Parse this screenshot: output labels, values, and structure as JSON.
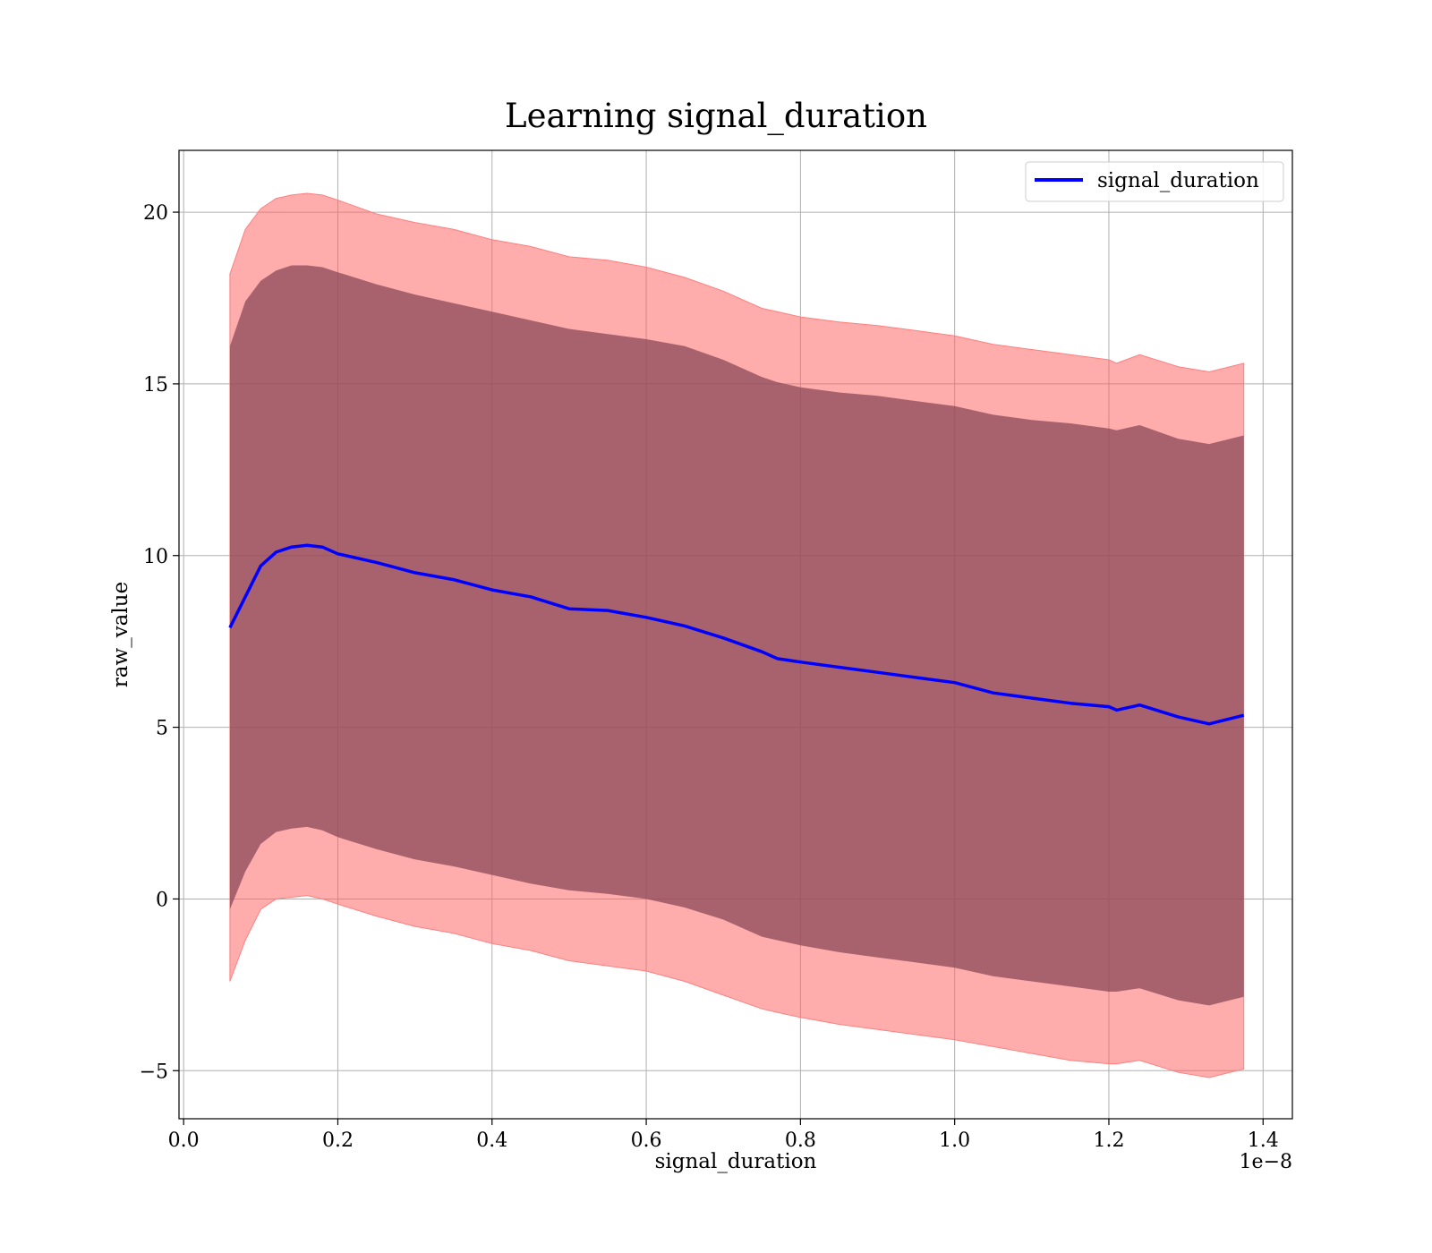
{
  "chart_data": {
    "type": "line",
    "title": "Learning signal_duration",
    "xlabel": "signal_duration",
    "ylabel": "raw_value",
    "x_offset_label": "1e−8",
    "xlim": [
      -0.006,
      1.438
    ],
    "ylim": [
      -6.4,
      21.8
    ],
    "x_ticks": [
      0.0,
      0.2,
      0.4,
      0.6,
      0.8,
      1.0,
      1.2,
      1.4
    ],
    "x_tick_labels": [
      "0.0",
      "0.2",
      "0.4",
      "0.6",
      "0.8",
      "1.0",
      "1.2",
      "1.4"
    ],
    "y_ticks": [
      -5,
      0,
      5,
      10,
      15,
      20
    ],
    "y_tick_labels": [
      "−5",
      "0",
      "5",
      "10",
      "15",
      "20"
    ],
    "grid": true,
    "legend": {
      "position": "top-right",
      "entries": [
        "signal_duration"
      ]
    },
    "colors": {
      "line": "#0000ff",
      "outer_band": "#ff5a5a",
      "outer_band_opacity": 0.5,
      "inner_band": "#8b4a5a",
      "inner_band_opacity": 0.75,
      "edge": "#ff8080"
    },
    "x": [
      0.06,
      0.08,
      0.1,
      0.12,
      0.14,
      0.16,
      0.18,
      0.2,
      0.25,
      0.3,
      0.35,
      0.4,
      0.45,
      0.5,
      0.55,
      0.6,
      0.65,
      0.7,
      0.75,
      0.77,
      0.8,
      0.85,
      0.9,
      0.95,
      1.0,
      1.05,
      1.1,
      1.15,
      1.2,
      1.21,
      1.24,
      1.29,
      1.33,
      1.375
    ],
    "series": [
      {
        "name": "signal_duration",
        "values": [
          7.9,
          8.8,
          9.7,
          10.1,
          10.25,
          10.3,
          10.25,
          10.05,
          9.8,
          9.5,
          9.3,
          9.0,
          8.8,
          8.45,
          8.4,
          8.2,
          7.95,
          7.6,
          7.2,
          7.0,
          6.9,
          6.75,
          6.6,
          6.45,
          6.3,
          6.0,
          5.85,
          5.7,
          5.6,
          5.5,
          5.65,
          5.3,
          5.1,
          5.35
        ]
      }
    ],
    "bands": [
      {
        "name": "outer",
        "lower": [
          -2.4,
          -1.2,
          -0.3,
          0.0,
          0.05,
          0.1,
          0.0,
          -0.15,
          -0.5,
          -0.8,
          -1.0,
          -1.3,
          -1.5,
          -1.8,
          -1.95,
          -2.1,
          -2.4,
          -2.8,
          -3.2,
          -3.3,
          -3.45,
          -3.65,
          -3.8,
          -3.95,
          -4.1,
          -4.3,
          -4.5,
          -4.7,
          -4.8,
          -4.8,
          -4.7,
          -5.05,
          -5.2,
          -4.95
        ],
        "upper": [
          18.2,
          19.5,
          20.1,
          20.4,
          20.5,
          20.55,
          20.5,
          20.35,
          19.95,
          19.7,
          19.5,
          19.2,
          19.0,
          18.7,
          18.6,
          18.4,
          18.1,
          17.7,
          17.2,
          17.1,
          16.95,
          16.8,
          16.7,
          16.55,
          16.4,
          16.15,
          16.0,
          15.85,
          15.7,
          15.6,
          15.85,
          15.5,
          15.35,
          15.6
        ]
      },
      {
        "name": "inner",
        "lower": [
          -0.3,
          0.8,
          1.6,
          1.95,
          2.05,
          2.1,
          2.0,
          1.8,
          1.45,
          1.15,
          0.95,
          0.7,
          0.45,
          0.25,
          0.15,
          0.0,
          -0.25,
          -0.6,
          -1.1,
          -1.2,
          -1.35,
          -1.55,
          -1.7,
          -1.85,
          -2.0,
          -2.25,
          -2.4,
          -2.55,
          -2.7,
          -2.7,
          -2.6,
          -2.95,
          -3.1,
          -2.85
        ],
        "upper": [
          16.1,
          17.4,
          18.0,
          18.3,
          18.45,
          18.45,
          18.4,
          18.25,
          17.9,
          17.6,
          17.35,
          17.1,
          16.85,
          16.6,
          16.45,
          16.3,
          16.1,
          15.7,
          15.2,
          15.05,
          14.9,
          14.75,
          14.65,
          14.5,
          14.35,
          14.1,
          13.95,
          13.85,
          13.7,
          13.65,
          13.8,
          13.4,
          13.25,
          13.5
        ]
      }
    ]
  }
}
